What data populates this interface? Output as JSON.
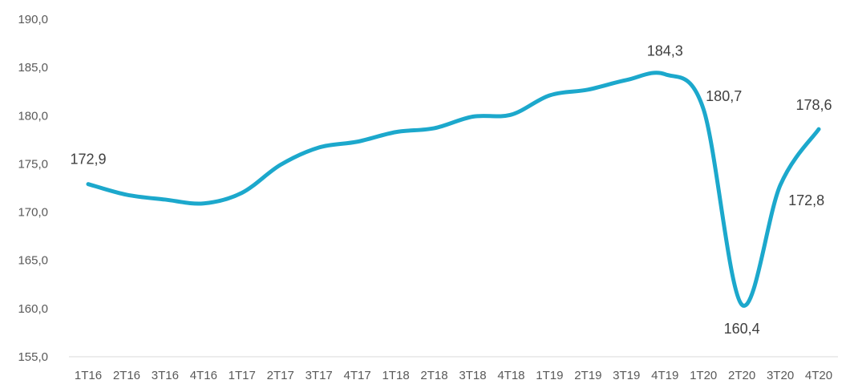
{
  "chart_data": {
    "type": "line",
    "categories": [
      "1T16",
      "2T16",
      "3T16",
      "4T16",
      "1T17",
      "2T17",
      "3T17",
      "4T17",
      "1T18",
      "2T18",
      "3T18",
      "4T18",
      "1T19",
      "2T19",
      "3T19",
      "4T19",
      "1T20",
      "2T20",
      "3T20",
      "4T20"
    ],
    "values": [
      172.9,
      171.8,
      171.3,
      170.9,
      172.0,
      174.9,
      176.7,
      177.3,
      178.3,
      178.7,
      179.9,
      180.1,
      182.1,
      182.7,
      183.7,
      184.3,
      180.7,
      160.4,
      172.8,
      178.6
    ],
    "yticks": [
      "155,0",
      "160,0",
      "165,0",
      "170,0",
      "175,0",
      "180,0",
      "185,0",
      "190,0"
    ],
    "ylim": [
      155,
      190
    ],
    "grid": false,
    "color": "#1CA8CC",
    "data_labels": [
      {
        "index": 0,
        "text": "172,9"
      },
      {
        "index": 15,
        "text": "184,3"
      },
      {
        "index": 16,
        "text": "180,7"
      },
      {
        "index": 17,
        "text": "160,4"
      },
      {
        "index": 18,
        "text": "172,8"
      },
      {
        "index": 19,
        "text": "178,6"
      }
    ]
  }
}
